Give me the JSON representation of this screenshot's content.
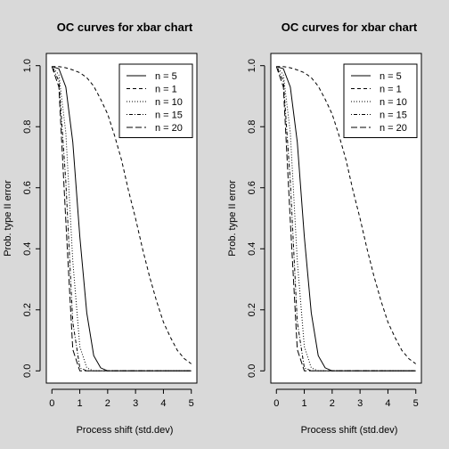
{
  "chart_data": [
    {
      "type": "line",
      "title": "OC curves for xbar chart",
      "xlabel": "Process shift (std.dev)",
      "ylabel": "Prob. type II error",
      "xlim": [
        0,
        5
      ],
      "ylim": [
        0,
        1
      ],
      "xticks": [
        "0",
        "1",
        "2",
        "3",
        "4",
        "5"
      ],
      "yticks": [
        "0.0",
        "0.2",
        "0.4",
        "0.6",
        "0.8",
        "1.0"
      ],
      "legend_position": "top-right",
      "x": [
        0,
        0.25,
        0.5,
        0.75,
        1.0,
        1.25,
        1.5,
        1.75,
        2.0,
        2.25,
        2.5,
        2.75,
        3.0,
        3.25,
        3.5,
        3.75,
        4.0,
        4.25,
        4.5,
        4.75,
        5.0
      ],
      "series": [
        {
          "name": "n = 5",
          "dash": "solid",
          "values": [
            0.997,
            0.99,
            0.93,
            0.75,
            0.44,
            0.19,
            0.05,
            0.01,
            0.0,
            0.0,
            0.0,
            0.0,
            0.0,
            0.0,
            0.0,
            0.0,
            0.0,
            0.0,
            0.0,
            0.0,
            0.0
          ]
        },
        {
          "name": "n = 1",
          "dash": "dashed",
          "values": [
            0.997,
            0.997,
            0.993,
            0.986,
            0.977,
            0.961,
            0.933,
            0.89,
            0.841,
            0.77,
            0.69,
            0.59,
            0.5,
            0.4,
            0.31,
            0.23,
            0.16,
            0.11,
            0.067,
            0.04,
            0.023
          ]
        },
        {
          "name": "n = 10",
          "dash": "dotted",
          "values": [
            0.997,
            0.97,
            0.78,
            0.36,
            0.08,
            0.01,
            0.0,
            0.0,
            0.0,
            0.0,
            0.0,
            0.0,
            0.0,
            0.0,
            0.0,
            0.0,
            0.0,
            0.0,
            0.0,
            0.0,
            0.0
          ]
        },
        {
          "name": "n = 15",
          "dash": "dotdash",
          "values": [
            0.997,
            0.95,
            0.62,
            0.16,
            0.01,
            0.0,
            0.0,
            0.0,
            0.0,
            0.0,
            0.0,
            0.0,
            0.0,
            0.0,
            0.0,
            0.0,
            0.0,
            0.0,
            0.0,
            0.0,
            0.0
          ]
        },
        {
          "name": "n = 20",
          "dash": "longdash",
          "values": [
            0.997,
            0.93,
            0.49,
            0.07,
            0.0,
            0.0,
            0.0,
            0.0,
            0.0,
            0.0,
            0.0,
            0.0,
            0.0,
            0.0,
            0.0,
            0.0,
            0.0,
            0.0,
            0.0,
            0.0,
            0.0
          ]
        }
      ]
    },
    {
      "type": "line",
      "title": "OC curves for xbar chart",
      "xlabel": "Process shift (std.dev)",
      "ylabel": "Prob. type II error",
      "xlim": [
        0,
        5
      ],
      "ylim": [
        0,
        1
      ],
      "xticks": [
        "0",
        "1",
        "2",
        "3",
        "4",
        "5"
      ],
      "yticks": [
        "0.0",
        "0.2",
        "0.4",
        "0.6",
        "0.8",
        "1.0"
      ],
      "legend_position": "top-right",
      "x": [
        0,
        0.25,
        0.5,
        0.75,
        1.0,
        1.25,
        1.5,
        1.75,
        2.0,
        2.25,
        2.5,
        2.75,
        3.0,
        3.25,
        3.5,
        3.75,
        4.0,
        4.25,
        4.5,
        4.75,
        5.0
      ],
      "series": [
        {
          "name": "n = 5",
          "dash": "solid",
          "values": [
            0.997,
            0.99,
            0.93,
            0.75,
            0.44,
            0.19,
            0.05,
            0.01,
            0.0,
            0.0,
            0.0,
            0.0,
            0.0,
            0.0,
            0.0,
            0.0,
            0.0,
            0.0,
            0.0,
            0.0,
            0.0
          ]
        },
        {
          "name": "n = 1",
          "dash": "dashed",
          "values": [
            0.997,
            0.997,
            0.993,
            0.986,
            0.977,
            0.961,
            0.933,
            0.89,
            0.841,
            0.77,
            0.69,
            0.59,
            0.5,
            0.4,
            0.31,
            0.23,
            0.16,
            0.11,
            0.067,
            0.04,
            0.023
          ]
        },
        {
          "name": "n = 10",
          "dash": "dotted",
          "values": [
            0.997,
            0.97,
            0.78,
            0.36,
            0.08,
            0.01,
            0.0,
            0.0,
            0.0,
            0.0,
            0.0,
            0.0,
            0.0,
            0.0,
            0.0,
            0.0,
            0.0,
            0.0,
            0.0,
            0.0,
            0.0
          ]
        },
        {
          "name": "n = 15",
          "dash": "dotdash",
          "values": [
            0.997,
            0.95,
            0.62,
            0.16,
            0.01,
            0.0,
            0.0,
            0.0,
            0.0,
            0.0,
            0.0,
            0.0,
            0.0,
            0.0,
            0.0,
            0.0,
            0.0,
            0.0,
            0.0,
            0.0,
            0.0
          ]
        },
        {
          "name": "n = 20",
          "dash": "longdash",
          "values": [
            0.997,
            0.93,
            0.49,
            0.07,
            0.0,
            0.0,
            0.0,
            0.0,
            0.0,
            0.0,
            0.0,
            0.0,
            0.0,
            0.0,
            0.0,
            0.0,
            0.0,
            0.0,
            0.0,
            0.0,
            0.0
          ]
        }
      ]
    }
  ]
}
